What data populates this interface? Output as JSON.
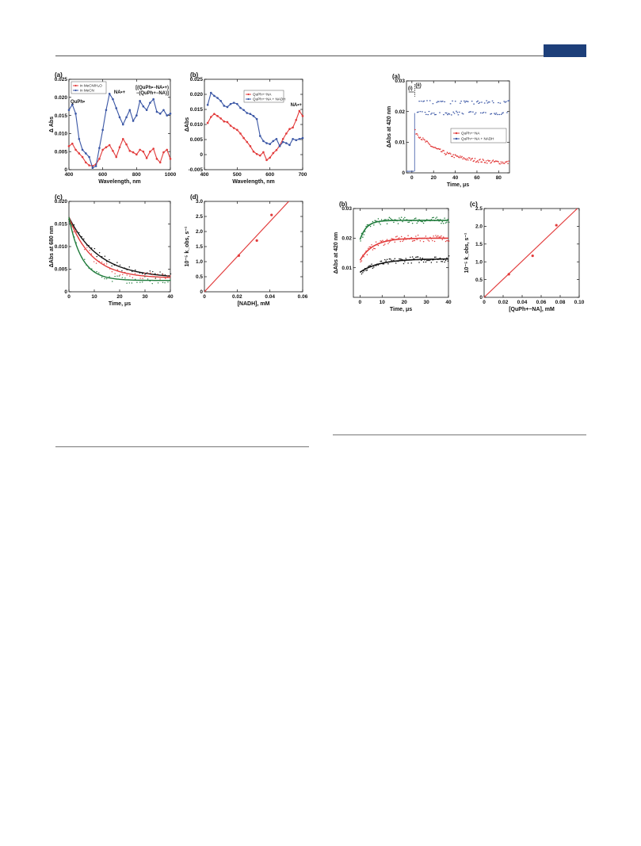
{
  "colors": {
    "red": "#e23b3b",
    "blue": "#3a56a5",
    "green": "#1e7a3a",
    "black": "#111111",
    "header_tab": "#1d3f7a"
  },
  "charts": [
    {
      "id": "left-a",
      "type": "line",
      "panel": "(a)",
      "xlabel": "Wavelength, nm",
      "ylabel": "Δ Abs",
      "xlim": [
        400,
        1000
      ],
      "ylim": [
        0,
        0.025
      ],
      "xticks": [
        "400",
        "600",
        "800",
        "1000"
      ],
      "yticks": [
        "0",
        "0.005",
        "0.010",
        "0.015",
        "0.020",
        "0.025"
      ],
      "legend": [
        "in MeCN/H₂O",
        "in MeCN"
      ],
      "annotations": [
        "NA•+",
        "[(QuPh•−NA•+) −(QuPh+−NA)]",
        "QuPh•"
      ],
      "series": [
        {
          "name": "in MeCN/H₂O",
          "color": "red",
          "x": [
            400,
            420,
            440,
            460,
            480,
            500,
            520,
            540,
            560,
            580,
            600,
            620,
            640,
            660,
            680,
            700,
            720,
            740,
            760,
            780,
            800,
            820,
            840,
            860,
            880,
            900,
            920,
            940,
            960,
            980,
            1000
          ],
          "y": [
            0.0065,
            0.0072,
            0.0055,
            0.0045,
            0.0035,
            0.002,
            0.0012,
            0.001,
            0.0015,
            0.003,
            0.0055,
            0.0062,
            0.0068,
            0.0052,
            0.0035,
            0.0062,
            0.0085,
            0.007,
            0.0052,
            0.0048,
            0.0042,
            0.0055,
            0.005,
            0.0032,
            0.005,
            0.0058,
            0.003,
            0.002,
            0.0048,
            0.0055,
            0.003
          ]
        },
        {
          "name": "in MeCN",
          "color": "blue",
          "x": [
            400,
            420,
            440,
            460,
            480,
            500,
            520,
            540,
            560,
            580,
            600,
            620,
            640,
            660,
            680,
            700,
            720,
            740,
            760,
            780,
            800,
            820,
            840,
            860,
            880,
            900,
            920,
            940,
            960,
            980,
            1000
          ],
          "y": [
            0.0165,
            0.018,
            0.0155,
            0.0085,
            0.0055,
            0.0045,
            0.0035,
            0.0005,
            0.001,
            0.006,
            0.011,
            0.0165,
            0.021,
            0.0195,
            0.017,
            0.0145,
            0.0125,
            0.0145,
            0.0165,
            0.0135,
            0.015,
            0.019,
            0.0175,
            0.0165,
            0.0185,
            0.0195,
            0.016,
            0.0155,
            0.0165,
            0.015,
            0.0155
          ]
        }
      ]
    },
    {
      "id": "left-b",
      "type": "line",
      "panel": "(b)",
      "xlabel": "Wavelength, nm",
      "ylabel": "ΔAbs",
      "xlim": [
        400,
        700
      ],
      "ylim": [
        -0.005,
        0.025
      ],
      "xticks": [
        "400",
        "500",
        "600",
        "700"
      ],
      "yticks": [
        "-0.005",
        "0",
        "0.005",
        "0.010",
        "0.015",
        "0.020",
        "0.025"
      ],
      "legend": [
        "QuPh+−NA",
        "QuPh+−NA + NADH"
      ],
      "annotations": [
        "NA•+"
      ],
      "series": [
        {
          "name": "QuPh+−NA",
          "color": "red",
          "x": [
            410,
            420,
            430,
            440,
            450,
            460,
            470,
            480,
            490,
            500,
            510,
            520,
            530,
            540,
            550,
            560,
            570,
            580,
            590,
            600,
            610,
            620,
            630,
            640,
            650,
            660,
            670,
            680,
            690,
            700
          ],
          "y": [
            0.0105,
            0.0125,
            0.0135,
            0.0128,
            0.012,
            0.011,
            0.0108,
            0.0096,
            0.0088,
            0.0082,
            0.007,
            0.0055,
            0.0042,
            0.0028,
            0.001,
            0.0002,
            -0.0003,
            0.0008,
            -0.0018,
            -0.001,
            0.0005,
            0.0015,
            0.003,
            0.0052,
            0.007,
            0.0085,
            0.009,
            0.0115,
            0.0145,
            0.0128
          ]
        },
        {
          "name": "QuPh+−NA + NADH",
          "color": "blue",
          "x": [
            410,
            420,
            430,
            440,
            450,
            460,
            470,
            480,
            490,
            500,
            510,
            520,
            530,
            540,
            550,
            560,
            570,
            580,
            590,
            600,
            610,
            620,
            630,
            640,
            650,
            660,
            670,
            680,
            690,
            700
          ],
          "y": [
            0.0165,
            0.0205,
            0.0195,
            0.0188,
            0.0178,
            0.0162,
            0.0158,
            0.0168,
            0.0172,
            0.0168,
            0.0155,
            0.0148,
            0.0138,
            0.0135,
            0.0128,
            0.0118,
            0.0062,
            0.0045,
            0.0038,
            0.0035,
            0.0045,
            0.0052,
            0.0028,
            0.0042,
            0.0038,
            0.0032,
            0.0052,
            0.0048,
            0.0052,
            0.0055
          ]
        }
      ]
    },
    {
      "id": "left-c",
      "type": "scatter",
      "panel": "(c)",
      "xlabel": "Time, μs",
      "ylabel": "ΔAbs at 680 nm",
      "xlim": [
        0,
        40
      ],
      "ylim": [
        0,
        0.02
      ],
      "xticks": [
        "0",
        "10",
        "20",
        "30",
        "40"
      ],
      "yticks": [
        "0",
        "0.005",
        "0.010",
        "0.015",
        "0.020"
      ],
      "series": [
        {
          "color": "black",
          "y0": 0.0165,
          "tau": 12,
          "yinf": 0.003
        },
        {
          "color": "red",
          "y0": 0.0165,
          "tau": 9,
          "yinf": 0.003
        },
        {
          "color": "green",
          "y0": 0.0165,
          "tau": 5,
          "yinf": 0.0025
        }
      ]
    },
    {
      "id": "left-d",
      "type": "line",
      "panel": "(d)",
      "xlabel": "[NADH], mM",
      "ylabel": "10⁻⁵ k_obs, s⁻¹",
      "xlim": [
        0,
        0.06
      ],
      "ylim": [
        0,
        3.0
      ],
      "xticks": [
        "0",
        "0.02",
        "0.04",
        "0.06"
      ],
      "yticks": [
        "0",
        "0.5",
        "1.0",
        "1.5",
        "2.0",
        "2.5",
        "3.0"
      ],
      "points": {
        "x": [
          0.021,
          0.032,
          0.041
        ],
        "y": [
          1.2,
          1.7,
          2.55
        ]
      },
      "fit": {
        "x": [
          0,
          0.0515
        ],
        "y": [
          0,
          3.0
        ]
      }
    },
    {
      "id": "right-a",
      "type": "scatter",
      "panel": "(a)",
      "xlabel": "Time, μs",
      "ylabel": "ΔAbs at 420 nm",
      "xlim": [
        -5,
        90
      ],
      "ylim": [
        0,
        0.03
      ],
      "xticks": [
        "0",
        "20",
        "40",
        "60",
        "80"
      ],
      "yticks": [
        "0",
        "0.01",
        "0.02",
        "0.03"
      ],
      "legend": [
        "QuPh+−NA",
        "QuPh+−NA + NADH"
      ],
      "annotations": [
        "(i)",
        "(ii)"
      ],
      "series": [
        {
          "name": "QuPh+−NA",
          "color": "red",
          "y0": 0.0135,
          "tau": 25,
          "yinf": 0.003,
          "t0": 3
        },
        {
          "name": "QuPh+−NA + NADH",
          "color": "blue",
          "level": 0.0205,
          "t0": 3
        }
      ]
    },
    {
      "id": "right-b",
      "type": "scatter",
      "panel": "(b)",
      "xlabel": "Time, μs",
      "ylabel": "ΔAbs at 420 nm",
      "xlim": [
        -3,
        40
      ],
      "ylim": [
        0,
        0.03
      ],
      "xticks": [
        "0",
        "10",
        "20",
        "30",
        "40"
      ],
      "yticks": [
        "0.01",
        "0.02",
        "0.03"
      ],
      "series": [
        {
          "color": "green",
          "y0": 0.0195,
          "yinf": 0.026,
          "tau": 3
        },
        {
          "color": "red",
          "y0": 0.0125,
          "yinf": 0.02,
          "tau": 6
        },
        {
          "color": "black",
          "y0": 0.0085,
          "yinf": 0.013,
          "tau": 9
        }
      ]
    },
    {
      "id": "right-c",
      "type": "line",
      "panel": "(c)",
      "xlabel": "[QuPh+−NA], mM",
      "ylabel": "10⁻⁵ k_obs, s⁻¹",
      "xlim": [
        0,
        0.1
      ],
      "ylim": [
        0,
        2.5
      ],
      "xticks": [
        "0",
        "0.02",
        "0.04",
        "0.06",
        "0.08",
        "0.10"
      ],
      "yticks": [
        "0",
        "0.5",
        "1.0",
        "1.5",
        "2.0",
        "2.5"
      ],
      "points": {
        "x": [
          0.026,
          0.051,
          0.076
        ],
        "y": [
          0.65,
          1.17,
          2.03
        ]
      },
      "fit": {
        "x": [
          0,
          0.098
        ],
        "y": [
          0,
          2.5
        ]
      }
    }
  ]
}
